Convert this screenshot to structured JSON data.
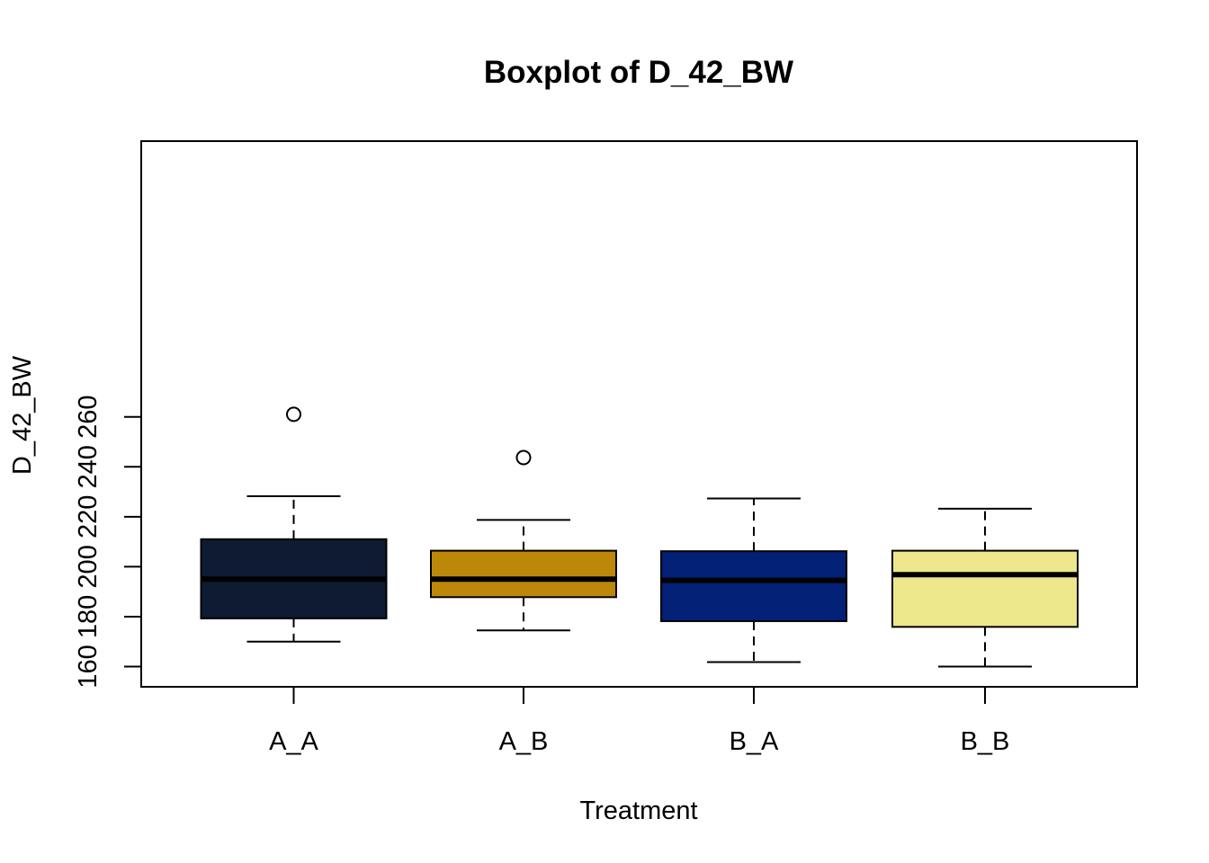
{
  "chart_data": {
    "type": "boxplot",
    "title": "Boxplot of D_42_BW",
    "xlabel": "Treatment",
    "ylabel": "D_42_BW",
    "categories": [
      "A_A",
      "A_B",
      "B_A",
      "B_B"
    ],
    "y_ticks": [
      160,
      180,
      200,
      220,
      240,
      260
    ],
    "ylim": [
      156,
      265
    ],
    "grid": false,
    "legend": "none",
    "boxes": [
      {
        "category": "A_A",
        "whisker_low": 170,
        "q1": 179.3,
        "median": 195,
        "q3": 211,
        "whisker_high": 228.2,
        "outliers": [
          261
        ],
        "color": "#0e1b33"
      },
      {
        "category": "A_B",
        "whisker_low": 174.5,
        "q1": 187.8,
        "median": 195,
        "q3": 206.4,
        "whisker_high": 218.7,
        "outliers": [
          243.7
        ],
        "color": "#bd880a"
      },
      {
        "category": "B_A",
        "whisker_low": 161.8,
        "q1": 178.2,
        "median": 194.5,
        "q3": 206.2,
        "whisker_high": 227.3,
        "outliers": [],
        "color": "#032077"
      },
      {
        "category": "B_B",
        "whisker_low": 160,
        "q1": 175.9,
        "median": 196.8,
        "q3": 206.4,
        "whisker_high": 223.2,
        "outliers": [],
        "color": "#ede78b"
      }
    ]
  }
}
